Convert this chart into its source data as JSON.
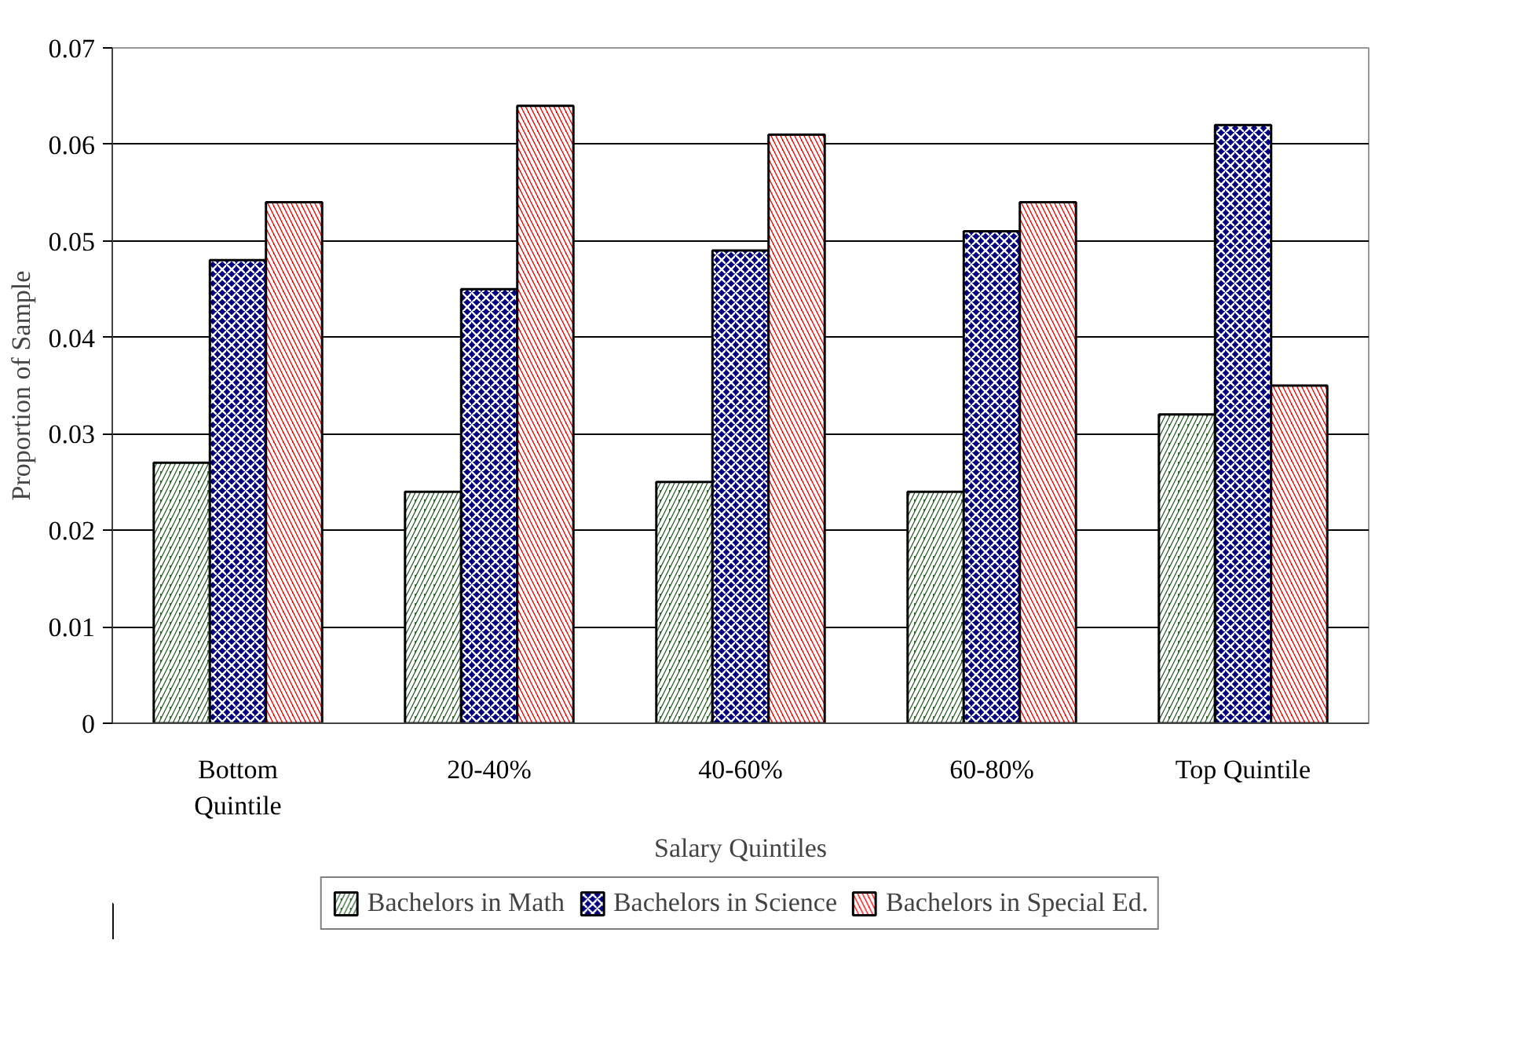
{
  "chart_data": {
    "type": "bar",
    "categories": [
      "Bottom Quintile",
      "20-40%",
      "40-60%",
      "60-80%",
      "Top Quintile"
    ],
    "series": [
      {
        "name": "Bachelors in Math",
        "color": "#336633",
        "values": [
          0.027,
          0.024,
          0.025,
          0.024,
          0.032
        ]
      },
      {
        "name": "Bachelors in Science",
        "color": "#000080",
        "values": [
          0.048,
          0.045,
          0.049,
          0.051,
          0.062
        ]
      },
      {
        "name": "Bachelors in Special Ed.",
        "color": "#ff0000",
        "values": [
          0.054,
          0.064,
          0.061,
          0.054,
          0.035
        ]
      }
    ],
    "xlabel": "Salary Quintiles",
    "ylabel": "Proportion of Sample",
    "ylim": [
      0,
      0.07
    ],
    "yticks": [
      0,
      0.01,
      0.02,
      0.03,
      0.04,
      0.05,
      0.06,
      0.07
    ],
    "grid": "y",
    "legend": "bottom"
  }
}
